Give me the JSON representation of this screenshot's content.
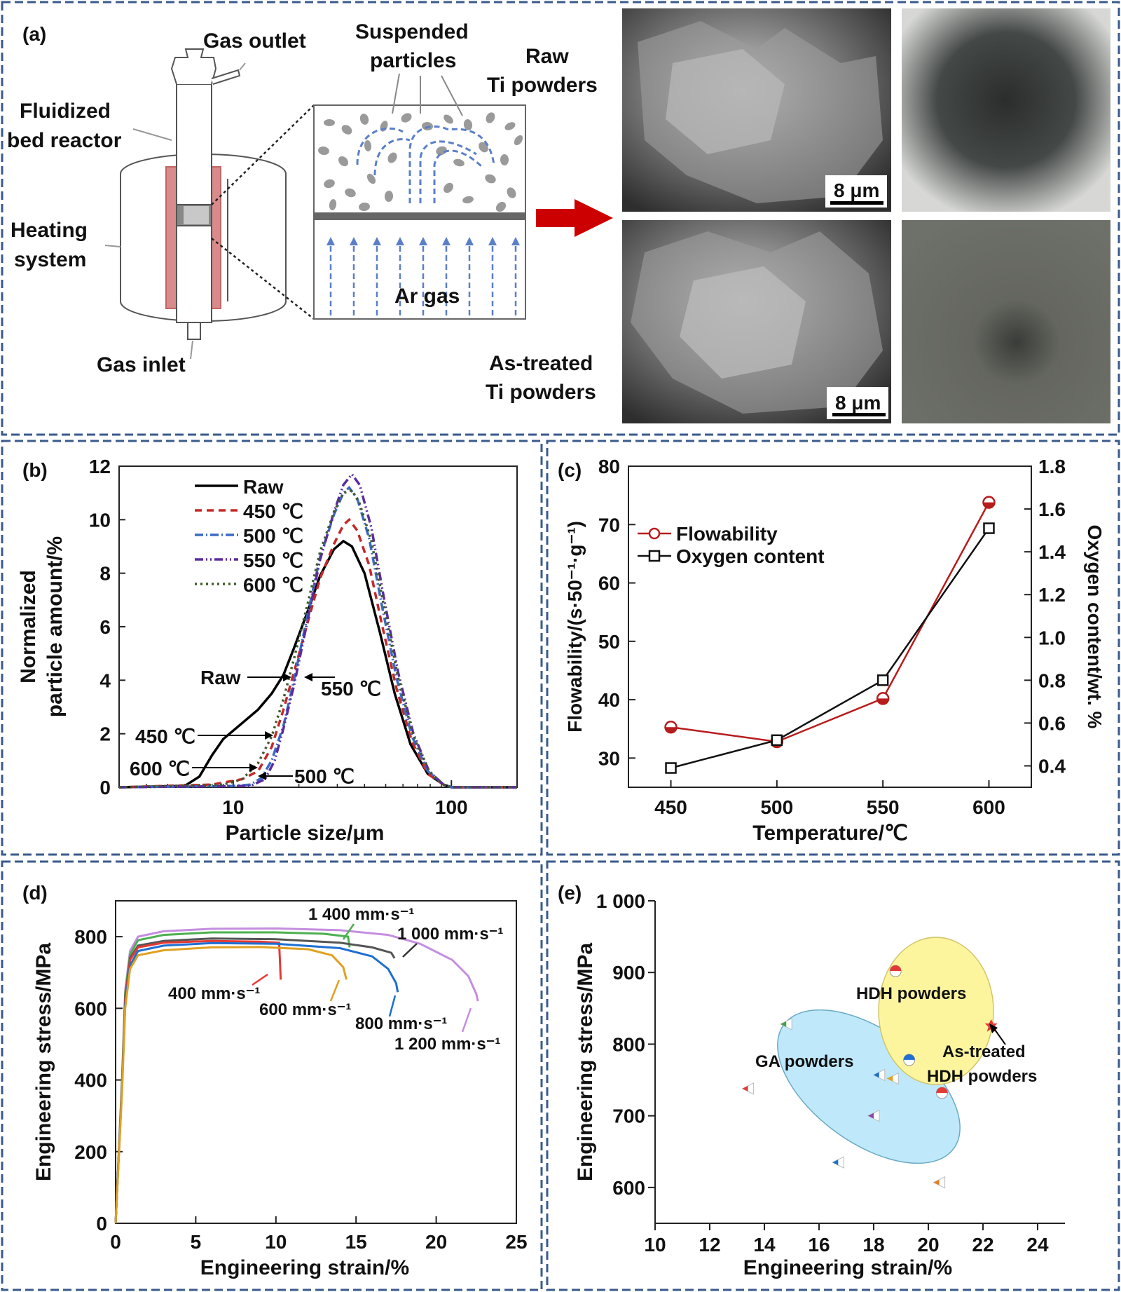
{
  "panel_a": {
    "label": "(a)",
    "gas_outlet": "Gas outlet",
    "fluidized_bed": [
      "Fluidized",
      "bed reactor"
    ],
    "heating_system": [
      "Heating",
      "system"
    ],
    "gas_inlet": "Gas inlet",
    "suspended_particles": [
      "Suspended",
      "particles"
    ],
    "ar_gas": "Ar gas",
    "raw_powders": [
      "Raw",
      "Ti powders"
    ],
    "treated_powders": [
      "As-treated",
      "Ti powders"
    ],
    "scale_bar_top": "8 μm",
    "scale_bar_bottom": "8 μm"
  },
  "chart_data": [
    {
      "panel": "(b)",
      "type": "line",
      "xlabel": "Particle size/μm",
      "ylabel": [
        "Normalized",
        "particle amount/%"
      ],
      "xscale": "log",
      "xlim": [
        3,
        200
      ],
      "ylim": [
        0,
        12
      ],
      "xticks": [
        "10",
        "100"
      ],
      "yticks": [
        "0",
        "2",
        "4",
        "6",
        "8",
        "10",
        "12"
      ],
      "legend_position": "top-left",
      "series": [
        {
          "name": "Raw",
          "color": "#000000",
          "dash": "solid",
          "points": [
            [
              3,
              0
            ],
            [
              6,
              0.05
            ],
            [
              7,
              0.4
            ],
            [
              8,
              1.2
            ],
            [
              9,
              1.8
            ],
            [
              11,
              2.4
            ],
            [
              13,
              2.9
            ],
            [
              15,
              3.5
            ],
            [
              17,
              4.2
            ],
            [
              19,
              5.2
            ],
            [
              22,
              6.6
            ],
            [
              25,
              7.9
            ],
            [
              29,
              8.9
            ],
            [
              32,
              9.2
            ],
            [
              35,
              9.0
            ],
            [
              40,
              8.0
            ],
            [
              47,
              5.8
            ],
            [
              55,
              3.5
            ],
            [
              65,
              1.6
            ],
            [
              78,
              0.5
            ],
            [
              92,
              0.1
            ],
            [
              100,
              0
            ],
            [
              200,
              0
            ]
          ]
        },
        {
          "name": "450 ℃",
          "color": "#c62828",
          "dash": "10,7",
          "points": [
            [
              3,
              0
            ],
            [
              8,
              0.1
            ],
            [
              11,
              0.3
            ],
            [
              13,
              0.6
            ],
            [
              15,
              1.5
            ],
            [
              17,
              2.9
            ],
            [
              19,
              4.3
            ],
            [
              22,
              6.2
            ],
            [
              25,
              7.8
            ],
            [
              29,
              9.1
            ],
            [
              32,
              9.8
            ],
            [
              34,
              10.0
            ],
            [
              37,
              9.6
            ],
            [
              42,
              8.3
            ],
            [
              48,
              6.1
            ],
            [
              56,
              3.7
            ],
            [
              66,
              1.7
            ],
            [
              78,
              0.5
            ],
            [
              92,
              0.1
            ],
            [
              100,
              0
            ],
            [
              200,
              0
            ]
          ]
        },
        {
          "name": "500 ℃",
          "color": "#3a6bc4",
          "dash": "12,4,2,4",
          "points": [
            [
              3,
              0
            ],
            [
              10,
              0.05
            ],
            [
              12,
              0.1
            ],
            [
              13.5,
              0.35
            ],
            [
              15,
              1.0
            ],
            [
              17,
              2.3
            ],
            [
              19,
              4.0
            ],
            [
              22,
              6.5
            ],
            [
              25,
              8.6
            ],
            [
              29,
              10.2
            ],
            [
              32,
              11.0
            ],
            [
              34,
              11.2
            ],
            [
              37,
              10.8
            ],
            [
              42,
              9.3
            ],
            [
              48,
              6.8
            ],
            [
              56,
              4.1
            ],
            [
              66,
              1.9
            ],
            [
              78,
              0.6
            ],
            [
              92,
              0.1
            ],
            [
              100,
              0
            ],
            [
              200,
              0
            ]
          ]
        },
        {
          "name": "550 ℃",
          "color": "#5a2ca0",
          "dash": "12,4,2,4,2,4",
          "points": [
            [
              3,
              0
            ],
            [
              12,
              0.05
            ],
            [
              14,
              0.3
            ],
            [
              15.5,
              1.0
            ],
            [
              17,
              2.2
            ],
            [
              19,
              3.8
            ],
            [
              22,
              6.3
            ],
            [
              25,
              8.5
            ],
            [
              29,
              10.3
            ],
            [
              32,
              11.3
            ],
            [
              35,
              11.7
            ],
            [
              38,
              11.3
            ],
            [
              43,
              9.7
            ],
            [
              49,
              7.1
            ],
            [
              57,
              4.3
            ],
            [
              67,
              2.0
            ],
            [
              79,
              0.6
            ],
            [
              92,
              0.1
            ],
            [
              100,
              0
            ],
            [
              200,
              0
            ]
          ]
        },
        {
          "name": "600 ℃",
          "color": "#3f5a2a",
          "dash": "3,5",
          "points": [
            [
              3,
              0
            ],
            [
              9,
              0.1
            ],
            [
              11,
              0.3
            ],
            [
              13,
              0.9
            ],
            [
              15,
              1.9
            ],
            [
              17,
              3.3
            ],
            [
              19,
              4.8
            ],
            [
              22,
              6.9
            ],
            [
              25,
              8.8
            ],
            [
              29,
              10.3
            ],
            [
              32,
              11.0
            ],
            [
              35,
              11.1
            ],
            [
              38,
              10.6
            ],
            [
              43,
              9.2
            ],
            [
              49,
              6.8
            ],
            [
              57,
              4.1
            ],
            [
              67,
              1.9
            ],
            [
              79,
              0.6
            ],
            [
              92,
              0.1
            ],
            [
              100,
              0
            ],
            [
              200,
              0
            ]
          ]
        }
      ],
      "annotations": [
        "Raw",
        "550 ℃",
        "450 ℃",
        "600 ℃",
        "500 ℃"
      ]
    },
    {
      "panel": "(c)",
      "type": "line",
      "xlabel": "Temperature/℃",
      "ylabel_left": "Flowability/(s·50⁻¹·g⁻¹)",
      "ylabel_right": "Oxygen content/wt. %",
      "x": [
        450,
        500,
        550,
        600
      ],
      "xticks": [
        "450",
        "500",
        "550",
        "600"
      ],
      "ylim_left": [
        25,
        80
      ],
      "yticks_left": [
        "30",
        "40",
        "50",
        "60",
        "70",
        "80"
      ],
      "ylim_right": [
        0.3,
        1.8
      ],
      "yticks_right": [
        "0.4",
        "0.6",
        "0.8",
        "1.0",
        "1.2",
        "1.4",
        "1.6",
        "1.8"
      ],
      "legend_position": "top-left",
      "series": [
        {
          "name": "Flowability",
          "axis": "left",
          "color": "#b71c1c",
          "marker": "circle",
          "values": [
            35.3,
            32.8,
            40.2,
            73.8
          ]
        },
        {
          "name": "Oxygen content",
          "axis": "right",
          "color": "#111111",
          "marker": "square",
          "values": [
            0.39,
            0.52,
            0.8,
            1.51
          ]
        }
      ]
    },
    {
      "panel": "(d)",
      "type": "line",
      "xlabel": "Engineering strain/%",
      "ylabel": "Engineering stress/MPa",
      "xlim": [
        0,
        25
      ],
      "ylim": [
        0,
        900
      ],
      "xticks": [
        "0",
        "5",
        "10",
        "15",
        "20",
        "25"
      ],
      "yticks": [
        "0",
        "200",
        "400",
        "600",
        "800"
      ],
      "series": [
        {
          "name": "1 200 mm·s⁻¹",
          "color": "#c48ee0",
          "points": [
            [
              0,
              0
            ],
            [
              0.4,
              400
            ],
            [
              0.6,
              650
            ],
            [
              0.9,
              760
            ],
            [
              1.4,
              800
            ],
            [
              3,
              815
            ],
            [
              6,
              822
            ],
            [
              10,
              823
            ],
            [
              14,
              818
            ],
            [
              17,
              805
            ],
            [
              19,
              780
            ],
            [
              21,
              735
            ],
            [
              22,
              690
            ],
            [
              22.5,
              640
            ],
            [
              22.6,
              620
            ]
          ]
        },
        {
          "name": "1 400 mm·s⁻¹",
          "color": "#4caf50",
          "points": [
            [
              0,
              0
            ],
            [
              0.4,
              400
            ],
            [
              0.6,
              640
            ],
            [
              0.9,
              750
            ],
            [
              1.4,
              790
            ],
            [
              3,
              805
            ],
            [
              6,
              812
            ],
            [
              10,
              812
            ],
            [
              13,
              808
            ],
            [
              14.5,
              800
            ],
            [
              14.6,
              770
            ]
          ]
        },
        {
          "name": "1 000 mm·s⁻¹",
          "color": "#555555",
          "points": [
            [
              0,
              0
            ],
            [
              0.4,
              390
            ],
            [
              0.6,
              630
            ],
            [
              0.9,
              740
            ],
            [
              1.4,
              775
            ],
            [
              3,
              788
            ],
            [
              6,
              795
            ],
            [
              10,
              793
            ],
            [
              14,
              783
            ],
            [
              16,
              770
            ],
            [
              17.2,
              755
            ],
            [
              17.4,
              740
            ]
          ]
        },
        {
          "name": "400 mm·s⁻¹",
          "color": "#e53935",
          "points": [
            [
              0,
              0
            ],
            [
              0.4,
              385
            ],
            [
              0.6,
              620
            ],
            [
              0.9,
              735
            ],
            [
              1.4,
              770
            ],
            [
              3,
              783
            ],
            [
              6,
              788
            ],
            [
              9,
              786
            ],
            [
              10.2,
              783
            ],
            [
              10.3,
              680
            ]
          ]
        },
        {
          "name": "800 mm·s⁻¹",
          "color": "#1e6fd1",
          "points": [
            [
              0,
              0
            ],
            [
              0.4,
              380
            ],
            [
              0.6,
              610
            ],
            [
              0.9,
              720
            ],
            [
              1.4,
              760
            ],
            [
              3,
              775
            ],
            [
              6,
              782
            ],
            [
              10,
              780
            ],
            [
              14,
              768
            ],
            [
              16,
              745
            ],
            [
              17,
              710
            ],
            [
              17.5,
              670
            ],
            [
              17.6,
              645
            ]
          ]
        },
        {
          "name": "600 mm·s⁻¹",
          "color": "#e0a020",
          "points": [
            [
              0,
              0
            ],
            [
              0.4,
              370
            ],
            [
              0.6,
              600
            ],
            [
              0.9,
              710
            ],
            [
              1.4,
              748
            ],
            [
              3,
              762
            ],
            [
              6,
              770
            ],
            [
              9,
              771
            ],
            [
              12,
              765
            ],
            [
              13.5,
              748
            ],
            [
              14.2,
              715
            ],
            [
              14.4,
              680
            ]
          ]
        }
      ],
      "labels": [
        "1 400 mm·s⁻¹",
        "1 000 mm·s⁻¹",
        "400 mm·s⁻¹",
        "600 mm·s⁻¹",
        "800 mm·s⁻¹",
        "1 200 mm·s⁻¹"
      ]
    },
    {
      "panel": "(e)",
      "type": "scatter",
      "xlabel": "Engineering strain/%",
      "ylabel": "Engineering stress/MPa",
      "xlim": [
        10,
        25
      ],
      "ylim": [
        550,
        1000
      ],
      "xticks": [
        "10",
        "12",
        "14",
        "16",
        "18",
        "20",
        "22",
        "24"
      ],
      "yticks": [
        "600",
        "700",
        "800",
        "900",
        "1 000"
      ],
      "groups": [
        {
          "name": "GA powders",
          "color": "#bfe9fb",
          "points": [
            [
              13.4,
              738,
              "#e53935"
            ],
            [
              14.8,
              828,
              "#43a047"
            ],
            [
              16.7,
              635,
              "#1e6fd1"
            ],
            [
              18.0,
              700,
              "#8e44ad"
            ],
            [
              18.2,
              757,
              "#1e6fd1"
            ],
            [
              18.7,
              752,
              "#e0a020"
            ],
            [
              20.4,
              607,
              "#e67e22"
            ]
          ]
        },
        {
          "name": "HDH powders",
          "color": "#fdf59e",
          "points": [
            [
              18.8,
              902,
              "#e53935"
            ],
            [
              19.3,
              778,
              "#1e6fd1"
            ],
            [
              20.5,
              732,
              "#e53935"
            ]
          ]
        },
        {
          "name": "As-treated HDH powders",
          "color": "#e53935",
          "points": [
            [
              22.3,
              826,
              "#e53935"
            ]
          ]
        }
      ],
      "labels": [
        "HDH powders",
        "GA powders",
        "As-treated",
        "HDH powders"
      ]
    }
  ]
}
